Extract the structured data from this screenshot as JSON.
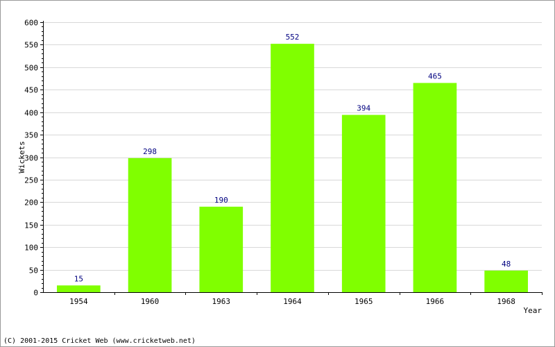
{
  "chart_data": {
    "type": "bar",
    "categories": [
      "1954",
      "1960",
      "1963",
      "1964",
      "1965",
      "1966",
      "1968"
    ],
    "values": [
      15,
      298,
      190,
      552,
      394,
      465,
      48
    ],
    "data_labels": [
      "15",
      "298",
      "190",
      "552",
      "394",
      "465",
      "48"
    ],
    "title": "",
    "xlabel": "Year",
    "ylabel": "Wickets",
    "ylim": [
      0,
      600
    ],
    "yticks": [
      0,
      50,
      100,
      150,
      200,
      250,
      300,
      350,
      400,
      450,
      500,
      550,
      600
    ],
    "grid": true,
    "legend": "none",
    "colors": {
      "bar": "#80ff00",
      "label": "#000080",
      "grid": "#d8d8d8",
      "axis": "#000000"
    }
  },
  "footer": {
    "copyright": "(C) 2001-2015 Cricket Web (www.cricketweb.net)"
  }
}
